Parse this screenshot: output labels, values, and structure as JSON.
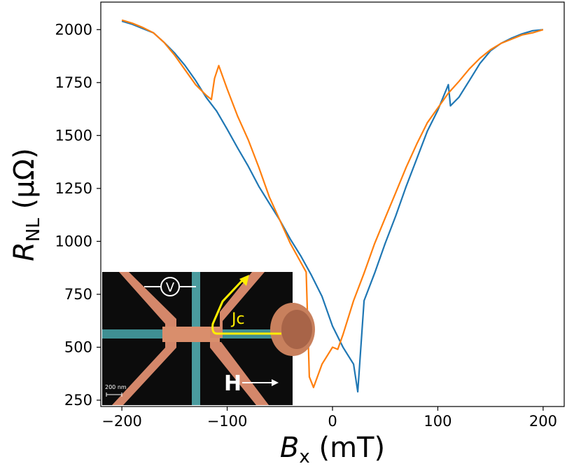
{
  "chart_data": {
    "type": "line",
    "xlabel": {
      "main": "B",
      "sub": "x",
      "unit": "(mT)"
    },
    "ylabel": {
      "main": "R",
      "sub": "NL",
      "unit": "(μΩ)"
    },
    "xlim": [
      -220,
      220
    ],
    "ylim": [
      220,
      2130
    ],
    "xticks": [
      -200,
      -100,
      0,
      100,
      200
    ],
    "yticks": [
      250,
      500,
      750,
      1000,
      1250,
      1500,
      1750,
      2000
    ],
    "grid": false,
    "series": [
      {
        "color": "#1f77b4",
        "x": [
          -200,
          -190,
          -180,
          -170,
          -160,
          -150,
          -140,
          -130,
          -120,
          -110,
          -100,
          -90,
          -80,
          -70,
          -60,
          -50,
          -40,
          -30,
          -20,
          -10,
          0,
          10,
          20,
          24,
          30,
          40,
          50,
          60,
          70,
          80,
          90,
          100,
          110,
          112,
          120,
          130,
          140,
          150,
          160,
          170,
          180,
          190,
          200
        ],
        "y": [
          2040,
          2025,
          2005,
          1985,
          1940,
          1890,
          1830,
          1760,
          1680,
          1615,
          1530,
          1440,
          1355,
          1260,
          1180,
          1100,
          1010,
          930,
          840,
          740,
          600,
          500,
          420,
          290,
          720,
          850,
          990,
          1120,
          1260,
          1390,
          1520,
          1620,
          1740,
          1640,
          1680,
          1760,
          1840,
          1900,
          1935,
          1960,
          1980,
          1995,
          2000
        ]
      },
      {
        "color": "#ff7f0e",
        "x": [
          -200,
          -190,
          -180,
          -170,
          -160,
          -150,
          -140,
          -130,
          -120,
          -115,
          -112,
          -108,
          -100,
          -90,
          -80,
          -70,
          -60,
          -50,
          -40,
          -30,
          -25,
          -22,
          -18,
          -10,
          0,
          5,
          10,
          20,
          30,
          40,
          50,
          60,
          70,
          80,
          90,
          100,
          110,
          120,
          130,
          140,
          150,
          160,
          170,
          180,
          190,
          200
        ],
        "y": [
          2045,
          2030,
          2010,
          1985,
          1940,
          1880,
          1810,
          1740,
          1690,
          1670,
          1770,
          1830,
          1720,
          1590,
          1480,
          1350,
          1210,
          1100,
          990,
          900,
          855,
          360,
          310,
          420,
          500,
          490,
          560,
          720,
          850,
          990,
          1110,
          1230,
          1350,
          1460,
          1560,
          1630,
          1700,
          1755,
          1815,
          1865,
          1905,
          1935,
          1955,
          1975,
          1985,
          2000
        ]
      }
    ]
  },
  "inset": {
    "voltmeter_label": "V",
    "current_label": "Jc",
    "field_label": "H",
    "scale_bar_label": "200 nm"
  }
}
